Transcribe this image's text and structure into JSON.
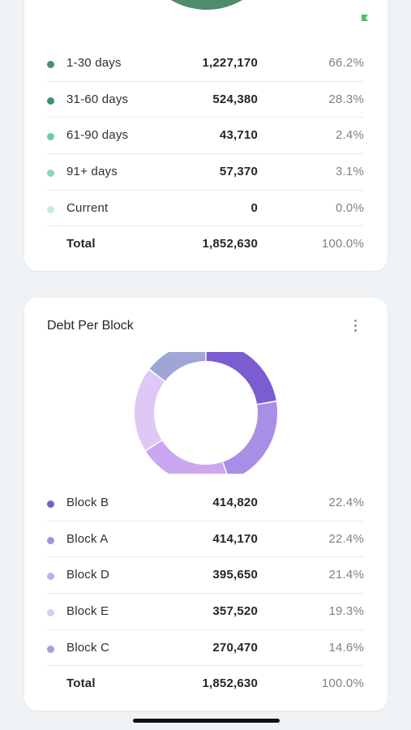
{
  "aging_card": {
    "ring_color": "#4a8a6a",
    "flag_color": "#4fbf5a",
    "legend": [
      {
        "label": "1-30 days",
        "amount": "1,227,170",
        "pct": "66.2%",
        "color": "#4f8b6d"
      },
      {
        "label": "31-60 days",
        "amount": "524,380",
        "pct": "28.3%",
        "color": "#3f8f78"
      },
      {
        "label": "61-90 days",
        "amount": "43,710",
        "pct": "2.4%",
        "color": "#6cc7b3"
      },
      {
        "label": "91+ days",
        "amount": "57,370",
        "pct": "3.1%",
        "color": "#86d8c4"
      },
      {
        "label": "Current",
        "amount": "0",
        "pct": "0.0%",
        "color": "#bfeee0"
      }
    ],
    "total": {
      "label": "Total",
      "amount": "1,852,630",
      "pct": "100.0%"
    }
  },
  "block_card": {
    "title": "Debt Per Block",
    "more_icon": "more-vertical-icon",
    "legend": [
      {
        "label": "Block B",
        "amount": "414,820",
        "pct": "22.4%",
        "color": "#7b5cd1"
      },
      {
        "label": "Block A",
        "amount": "414,170",
        "pct": "22.4%",
        "color": "#a88ee6"
      },
      {
        "label": "Block D",
        "amount": "395,650",
        "pct": "21.4%",
        "color": "#c9a8f0"
      },
      {
        "label": "Block E",
        "amount": "357,520",
        "pct": "19.3%",
        "color": "#dfc8f6"
      },
      {
        "label": "Block C",
        "amount": "270,470",
        "pct": "14.6%",
        "color": "#9fa6d6"
      }
    ],
    "total": {
      "label": "Total",
      "amount": "1,852,630",
      "pct": "100.0%"
    }
  },
  "chart_data": [
    {
      "type": "pie",
      "categories": [
        "1-30 days",
        "31-60 days",
        "61-90 days",
        "91+ days",
        "Current"
      ],
      "values": [
        1227170,
        524380,
        43710,
        57370,
        0
      ],
      "colors": [
        "#4f8b6d",
        "#3f8f78",
        "#6cc7b3",
        "#86d8c4",
        "#bfeee0"
      ],
      "title": ""
    },
    {
      "type": "pie",
      "categories": [
        "Block B",
        "Block A",
        "Block D",
        "Block E",
        "Block C"
      ],
      "values": [
        414820,
        414170,
        395650,
        357520,
        270470
      ],
      "colors": [
        "#7b5cd1",
        "#a88ee6",
        "#c9a8f0",
        "#dfc8f6",
        "#9fa6d6"
      ],
      "title": "Debt Per Block"
    }
  ]
}
